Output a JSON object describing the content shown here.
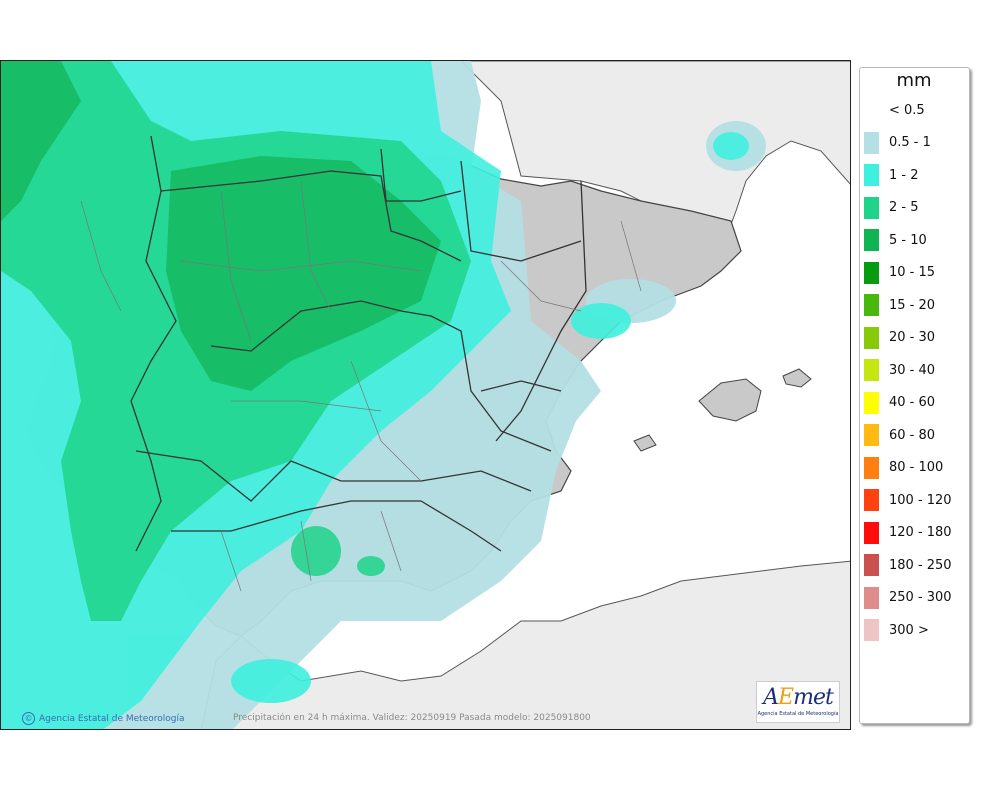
{
  "legend": {
    "unit": "mm",
    "items": [
      {
        "label": "< 0.5",
        "color": "none"
      },
      {
        "label": "0.5 - 1",
        "color": "#b4dfe4"
      },
      {
        "label": "1 - 2",
        "color": "#3ff0de"
      },
      {
        "label": "2 - 5",
        "color": "#1fd48a"
      },
      {
        "label": "5 - 10",
        "color": "#11b453"
      },
      {
        "label": "10 - 15",
        "color": "#079b10"
      },
      {
        "label": "15 - 20",
        "color": "#48b80e"
      },
      {
        "label": "20 - 30",
        "color": "#87ca0b"
      },
      {
        "label": "30 - 40",
        "color": "#c5e613"
      },
      {
        "label": "40 - 60",
        "color": "#ffff00"
      },
      {
        "label": "60 - 80",
        "color": "#ffbb12"
      },
      {
        "label": "80 - 100",
        "color": "#ff7f10"
      },
      {
        "label": "100 - 120",
        "color": "#ff4210"
      },
      {
        "label": "120 - 180",
        "color": "#ff0c0c"
      },
      {
        "label": "180 - 250",
        "color": "#cb5050"
      },
      {
        "label": "250 - 300",
        "color": "#de8c8c"
      },
      {
        "label": "300 >",
        "color": "#efc4c4"
      }
    ]
  },
  "footer": {
    "credit": "Agencia Estatal de Meteorología",
    "validity": "Precipitación en 24 h máxima. Validez: 20250919 Pasada modelo: 2025091800"
  },
  "logo": {
    "wordmark_a": "A",
    "wordmark_e": "E",
    "wordmark_rest": "met",
    "subtitle": "Agencia Estatal de Meteorología"
  },
  "colors": {
    "sea": "#d9ecef",
    "land": "#c9c9c9",
    "foreign_land": "#ececec",
    "border": "#222222"
  }
}
